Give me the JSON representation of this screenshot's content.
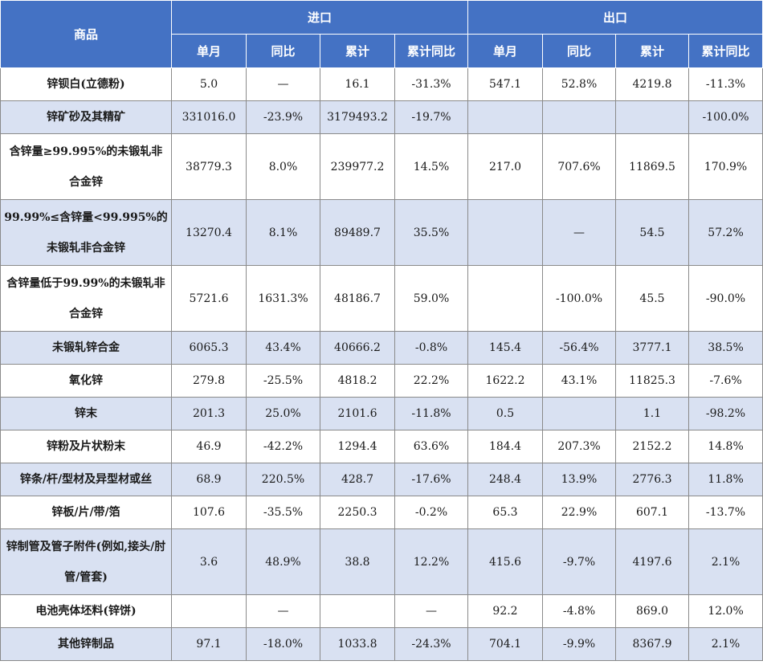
{
  "header": {
    "product": "商品",
    "import_group": "进口",
    "export_group": "出口",
    "columns": [
      "单月",
      "同比",
      "累计",
      "累计同比",
      "单月",
      "同比",
      "累计",
      "累计同比"
    ]
  },
  "rows": [
    {
      "name": "锌钡白(立德粉)",
      "imp_month": "5.0",
      "imp_yoy": "—",
      "imp_cum": "16.1",
      "imp_cum_yoy": "-31.3%",
      "exp_month": "547.1",
      "exp_yoy": "52.8%",
      "exp_cum": "4219.8",
      "exp_cum_yoy": "-11.3%"
    },
    {
      "name": "锌矿砂及其精矿",
      "imp_month": "331016.0",
      "imp_yoy": "-23.9%",
      "imp_cum": "3179493.2",
      "imp_cum_yoy": "-19.7%",
      "exp_month": "",
      "exp_yoy": "",
      "exp_cum": "",
      "exp_cum_yoy": "-100.0%"
    },
    {
      "name": "含锌量≥99.995%的未锻轧非合金锌",
      "imp_month": "38779.3",
      "imp_yoy": "8.0%",
      "imp_cum": "239977.2",
      "imp_cum_yoy": "14.5%",
      "exp_month": "217.0",
      "exp_yoy": "707.6%",
      "exp_cum": "11869.5",
      "exp_cum_yoy": "170.9%"
    },
    {
      "name": "99.99%≤含锌量<99.995%的未锻轧非合金锌",
      "imp_month": "13270.4",
      "imp_yoy": "8.1%",
      "imp_cum": "89489.7",
      "imp_cum_yoy": "35.5%",
      "exp_month": "",
      "exp_yoy": "—",
      "exp_cum": "54.5",
      "exp_cum_yoy": "57.2%"
    },
    {
      "name": "含锌量低于99.99%的未锻轧非合金锌",
      "imp_month": "5721.6",
      "imp_yoy": "1631.3%",
      "imp_cum": "48186.7",
      "imp_cum_yoy": "59.0%",
      "exp_month": "",
      "exp_yoy": "-100.0%",
      "exp_cum": "45.5",
      "exp_cum_yoy": "-90.0%"
    },
    {
      "name": "未锻轧锌合金",
      "imp_month": "6065.3",
      "imp_yoy": "43.4%",
      "imp_cum": "40666.2",
      "imp_cum_yoy": "-0.8%",
      "exp_month": "145.4",
      "exp_yoy": "-56.4%",
      "exp_cum": "3777.1",
      "exp_cum_yoy": "38.5%"
    },
    {
      "name": "氧化锌",
      "imp_month": "279.8",
      "imp_yoy": "-25.5%",
      "imp_cum": "4818.2",
      "imp_cum_yoy": "22.2%",
      "exp_month": "1622.2",
      "exp_yoy": "43.1%",
      "exp_cum": "11825.3",
      "exp_cum_yoy": "-7.6%"
    },
    {
      "name": "锌末",
      "imp_month": "201.3",
      "imp_yoy": "25.0%",
      "imp_cum": "2101.6",
      "imp_cum_yoy": "-11.8%",
      "exp_month": "0.5",
      "exp_yoy": "",
      "exp_cum": "1.1",
      "exp_cum_yoy": "-98.2%"
    },
    {
      "name": "锌粉及片状粉末",
      "imp_month": "46.9",
      "imp_yoy": "-42.2%",
      "imp_cum": "1294.4",
      "imp_cum_yoy": "63.6%",
      "exp_month": "184.4",
      "exp_yoy": "207.3%",
      "exp_cum": "2152.2",
      "exp_cum_yoy": "14.8%"
    },
    {
      "name": "锌条/杆/型材及异型材或丝",
      "imp_month": "68.9",
      "imp_yoy": "220.5%",
      "imp_cum": "428.7",
      "imp_cum_yoy": "-17.6%",
      "exp_month": "248.4",
      "exp_yoy": "13.9%",
      "exp_cum": "2776.3",
      "exp_cum_yoy": "11.8%"
    },
    {
      "name": "锌板/片/带/箔",
      "imp_month": "107.6",
      "imp_yoy": "-35.5%",
      "imp_cum": "2250.3",
      "imp_cum_yoy": "-0.2%",
      "exp_month": "65.3",
      "exp_yoy": "22.9%",
      "exp_cum": "607.1",
      "exp_cum_yoy": "-13.7%"
    },
    {
      "name": "锌制管及管子附件(例如,接头/肘管/管套)",
      "imp_month": "3.6",
      "imp_yoy": "48.9%",
      "imp_cum": "38.8",
      "imp_cum_yoy": "12.2%",
      "exp_month": "415.6",
      "exp_yoy": "-9.7%",
      "exp_cum": "4197.6",
      "exp_cum_yoy": "2.1%"
    },
    {
      "name": "电池壳体坯料(锌饼)",
      "imp_month": "",
      "imp_yoy": "—",
      "imp_cum": "",
      "imp_cum_yoy": "—",
      "exp_month": "92.2",
      "exp_yoy": "-4.8%",
      "exp_cum": "869.0",
      "exp_cum_yoy": "12.0%"
    },
    {
      "name": "其他锌制品",
      "imp_month": "97.1",
      "imp_yoy": "-18.0%",
      "imp_cum": "1033.8",
      "imp_cum_yoy": "-24.3%",
      "exp_month": "704.1",
      "exp_yoy": "-9.9%",
      "exp_cum": "8367.9",
      "exp_cum_yoy": "2.1%"
    }
  ]
}
